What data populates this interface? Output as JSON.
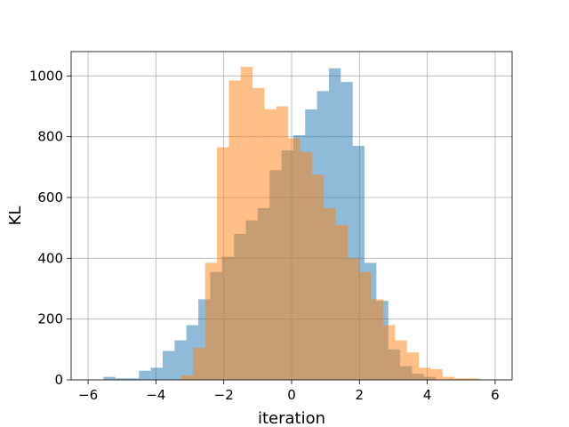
{
  "chart_data": {
    "type": "histogram",
    "title": "",
    "xlabel": "iteration",
    "ylabel": "KL",
    "xlim": [
      -6.5,
      6.5
    ],
    "ylim": [
      0,
      1080
    ],
    "xticks": [
      -6,
      -4,
      -2,
      0,
      2,
      4,
      6
    ],
    "yticks": [
      0,
      200,
      400,
      600,
      800,
      1000
    ],
    "grid": true,
    "legend": "none",
    "series": [
      {
        "color": "#1f77b4",
        "alpha": 0.5,
        "bins": [
          {
            "x0": -5.55,
            "x1": -5.2,
            "count": 10
          },
          {
            "x0": -5.2,
            "x1": -4.85,
            "count": 5
          },
          {
            "x0": -4.85,
            "x1": -4.5,
            "count": 5
          },
          {
            "x0": -4.5,
            "x1": -4.15,
            "count": 30
          },
          {
            "x0": -4.15,
            "x1": -3.8,
            "count": 40
          },
          {
            "x0": -3.8,
            "x1": -3.45,
            "count": 95
          },
          {
            "x0": -3.45,
            "x1": -3.1,
            "count": 130
          },
          {
            "x0": -3.1,
            "x1": -2.75,
            "count": 180
          },
          {
            "x0": -2.75,
            "x1": -2.4,
            "count": 265
          },
          {
            "x0": -2.4,
            "x1": -2.05,
            "count": 355
          },
          {
            "x0": -2.05,
            "x1": -1.7,
            "count": 405
          },
          {
            "x0": -1.7,
            "x1": -1.35,
            "count": 480
          },
          {
            "x0": -1.35,
            "x1": -1.0,
            "count": 525
          },
          {
            "x0": -1.0,
            "x1": -0.65,
            "count": 565
          },
          {
            "x0": -0.65,
            "x1": -0.3,
            "count": 690
          },
          {
            "x0": -0.3,
            "x1": 0.05,
            "count": 755
          },
          {
            "x0": 0.05,
            "x1": 0.4,
            "count": 805
          },
          {
            "x0": 0.4,
            "x1": 0.75,
            "count": 890
          },
          {
            "x0": 0.75,
            "x1": 1.1,
            "count": 950
          },
          {
            "x0": 1.1,
            "x1": 1.45,
            "count": 1025
          },
          {
            "x0": 1.45,
            "x1": 1.8,
            "count": 980
          },
          {
            "x0": 1.8,
            "x1": 2.15,
            "count": 770
          },
          {
            "x0": 2.15,
            "x1": 2.5,
            "count": 385
          },
          {
            "x0": 2.5,
            "x1": 2.85,
            "count": 260
          },
          {
            "x0": 2.85,
            "x1": 3.2,
            "count": 100
          },
          {
            "x0": 3.2,
            "x1": 3.55,
            "count": 45
          },
          {
            "x0": 3.55,
            "x1": 3.9,
            "count": 20
          },
          {
            "x0": 3.9,
            "x1": 4.25,
            "count": 10
          }
        ]
      },
      {
        "color": "#ff7f0e",
        "alpha": 0.5,
        "bins": [
          {
            "x0": -3.25,
            "x1": -2.9,
            "count": 15
          },
          {
            "x0": -2.9,
            "x1": -2.55,
            "count": 105
          },
          {
            "x0": -2.55,
            "x1": -2.2,
            "count": 385
          },
          {
            "x0": -2.2,
            "x1": -1.85,
            "count": 765
          },
          {
            "x0": -1.85,
            "x1": -1.5,
            "count": 985
          },
          {
            "x0": -1.5,
            "x1": -1.15,
            "count": 1030
          },
          {
            "x0": -1.15,
            "x1": -0.8,
            "count": 960
          },
          {
            "x0": -0.8,
            "x1": -0.45,
            "count": 890
          },
          {
            "x0": -0.45,
            "x1": -0.1,
            "count": 900
          },
          {
            "x0": -0.1,
            "x1": 0.25,
            "count": 795
          },
          {
            "x0": 0.25,
            "x1": 0.6,
            "count": 750
          },
          {
            "x0": 0.6,
            "x1": 0.95,
            "count": 675
          },
          {
            "x0": 0.95,
            "x1": 1.3,
            "count": 565
          },
          {
            "x0": 1.3,
            "x1": 1.65,
            "count": 510
          },
          {
            "x0": 1.65,
            "x1": 2.0,
            "count": 400
          },
          {
            "x0": 2.0,
            "x1": 2.35,
            "count": 355
          },
          {
            "x0": 2.35,
            "x1": 2.7,
            "count": 265
          },
          {
            "x0": 2.7,
            "x1": 3.05,
            "count": 180
          },
          {
            "x0": 3.05,
            "x1": 3.4,
            "count": 130
          },
          {
            "x0": 3.4,
            "x1": 3.75,
            "count": 90
          },
          {
            "x0": 3.75,
            "x1": 4.1,
            "count": 40
          },
          {
            "x0": 4.1,
            "x1": 4.45,
            "count": 35
          },
          {
            "x0": 4.45,
            "x1": 4.8,
            "count": 10
          },
          {
            "x0": 4.8,
            "x1": 5.15,
            "count": 5
          },
          {
            "x0": 5.15,
            "x1": 5.55,
            "count": 5
          }
        ]
      }
    ]
  }
}
